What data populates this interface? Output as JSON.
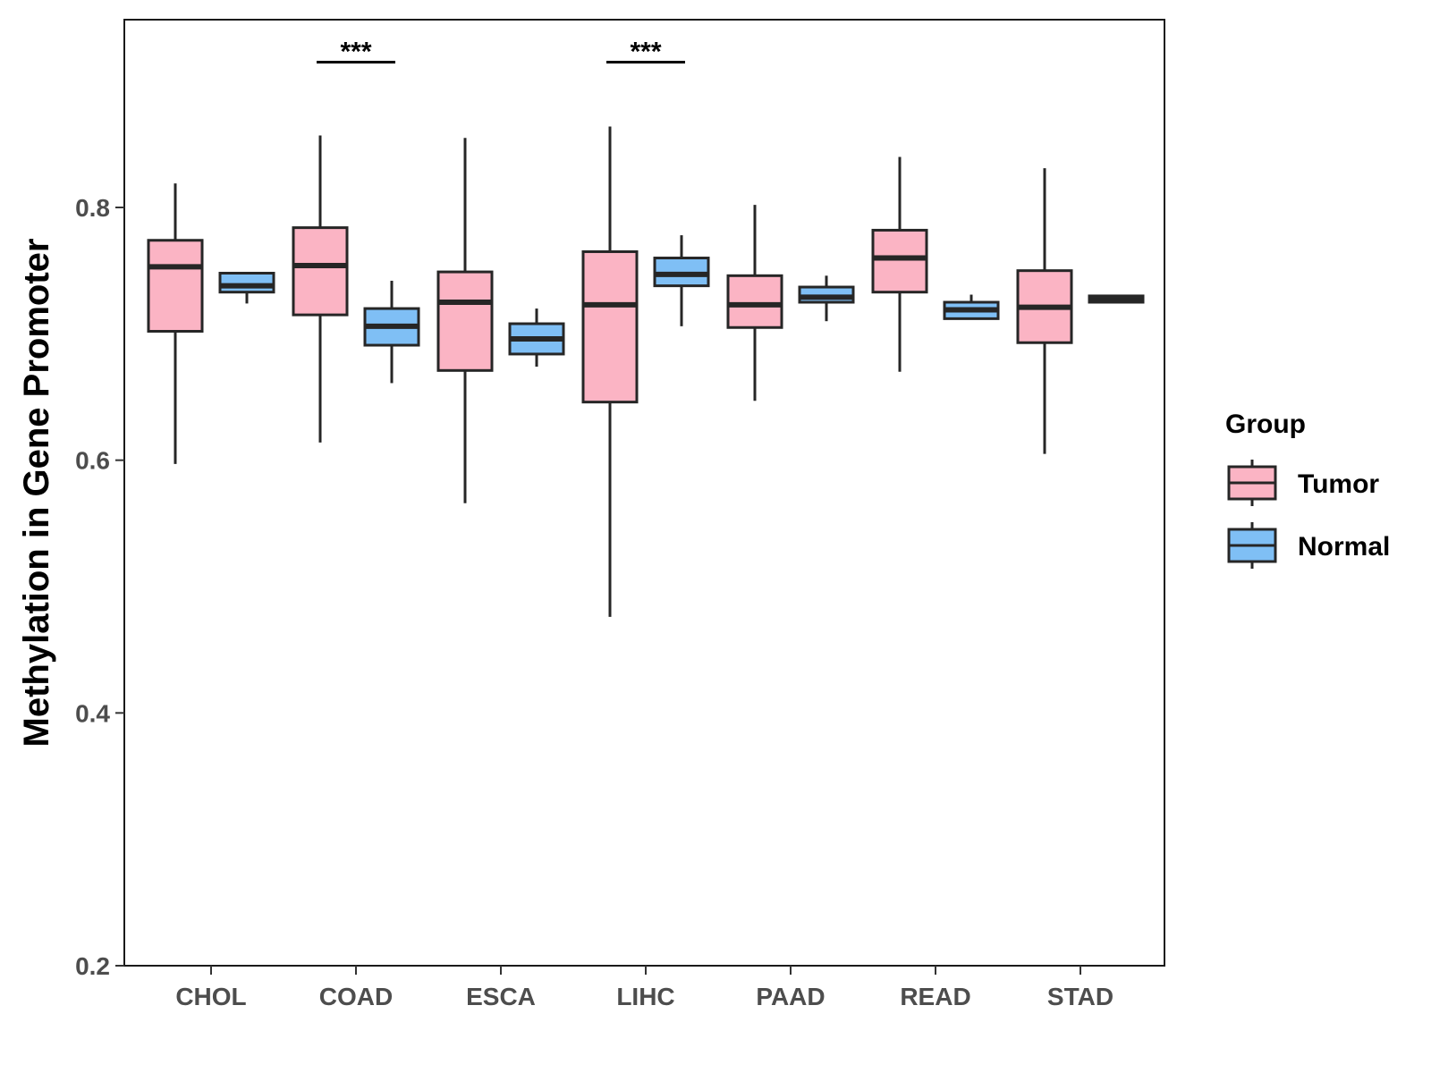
{
  "chart_data": {
    "type": "boxplot",
    "title": "",
    "xlabel": "",
    "ylabel": "Methylation in Gene Promoter",
    "ylim": [
      0.2,
      0.95
    ],
    "yticks": [
      0.2,
      0.4,
      0.6,
      0.8
    ],
    "ytick_labels": [
      "0.2",
      "0.4",
      "0.6",
      "0.8"
    ],
    "categories": [
      "CHOL",
      "COAD",
      "ESCA",
      "LIHC",
      "PAAD",
      "READ",
      "STAD"
    ],
    "grid": false,
    "legend": {
      "title": "Group",
      "position": "right",
      "items": [
        {
          "name": "Tumor",
          "color": "#fbb4c4"
        },
        {
          "name": "Normal",
          "color": "#7fbff5"
        }
      ]
    },
    "series": [
      {
        "name": "Tumor",
        "color": "#fbb4c4",
        "boxes": [
          {
            "min": 0.597,
            "q1": 0.702,
            "median": 0.753,
            "q3": 0.774,
            "max": 0.819
          },
          {
            "min": 0.614,
            "q1": 0.715,
            "median": 0.754,
            "q3": 0.784,
            "max": 0.857
          },
          {
            "min": 0.566,
            "q1": 0.671,
            "median": 0.725,
            "q3": 0.749,
            "max": 0.855
          },
          {
            "min": 0.476,
            "q1": 0.646,
            "median": 0.723,
            "q3": 0.765,
            "max": 0.864
          },
          {
            "min": 0.647,
            "q1": 0.705,
            "median": 0.723,
            "q3": 0.746,
            "max": 0.802
          },
          {
            "min": 0.67,
            "q1": 0.733,
            "median": 0.76,
            "q3": 0.782,
            "max": 0.84
          },
          {
            "min": 0.605,
            "q1": 0.693,
            "median": 0.721,
            "q3": 0.75,
            "max": 0.831
          }
        ]
      },
      {
        "name": "Normal",
        "color": "#7fbff5",
        "boxes": [
          {
            "min": 0.724,
            "q1": 0.733,
            "median": 0.738,
            "q3": 0.748,
            "max": 0.748
          },
          {
            "min": 0.661,
            "q1": 0.691,
            "median": 0.706,
            "q3": 0.72,
            "max": 0.742
          },
          {
            "min": 0.674,
            "q1": 0.684,
            "median": 0.696,
            "q3": 0.708,
            "max": 0.72
          },
          {
            "min": 0.706,
            "q1": 0.738,
            "median": 0.747,
            "q3": 0.76,
            "max": 0.778
          },
          {
            "min": 0.71,
            "q1": 0.725,
            "median": 0.729,
            "q3": 0.737,
            "max": 0.746
          },
          {
            "min": 0.712,
            "q1": 0.712,
            "median": 0.719,
            "q3": 0.725,
            "max": 0.731
          },
          {
            "min": 0.725,
            "q1": 0.725,
            "median": 0.727,
            "q3": 0.73,
            "max": 0.731
          }
        ]
      }
    ],
    "annotations": [
      {
        "category": "COAD",
        "text": "***",
        "y": 0.915
      },
      {
        "category": "LIHC",
        "text": "***",
        "y": 0.915
      }
    ]
  }
}
